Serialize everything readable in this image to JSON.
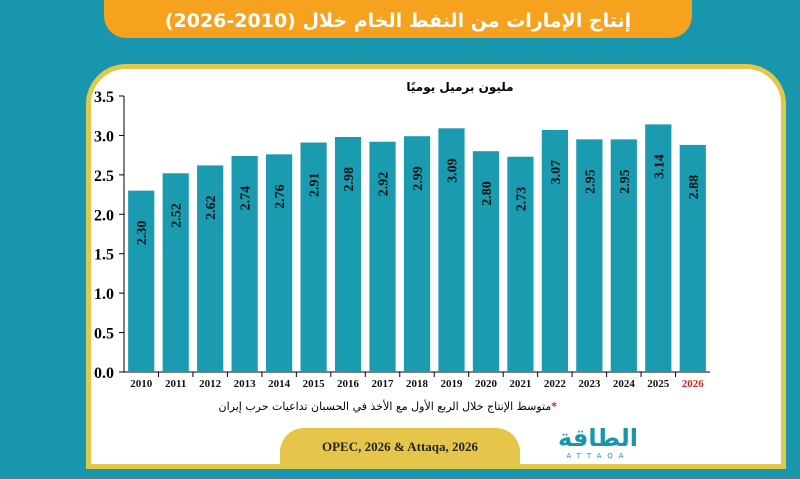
{
  "title": "إنتاج الإمارات من النفط الخام خلال (2010-2026)",
  "note_star": "*",
  "note": "متوسط الإنتاج خلال الربع الأول مع الأخذ في الحسبان تداعيات حرب إيران",
  "source": "OPEC, 2026 & Attaqa, 2026",
  "logo": {
    "ar": "الطاقة",
    "en": "ATTAQA"
  },
  "colors": {
    "bar": "#1a9bb0",
    "title_bg": "#f6a21e",
    "highlight_year": "#d22222"
  },
  "chart_data": {
    "type": "bar",
    "title": "إنتاج الإمارات من النفط الخام خلال (2010-2026)",
    "ylabel": "مليون برميل يوميًا",
    "xlabel": "",
    "categories": [
      "2010",
      "2011",
      "2012",
      "2013",
      "2014",
      "2015",
      "2016",
      "2017",
      "2018",
      "2019",
      "2020",
      "2021",
      "2022",
      "2023",
      "2024",
      "2025",
      "2026"
    ],
    "values": [
      2.3,
      2.52,
      2.62,
      2.74,
      2.76,
      2.91,
      2.98,
      2.92,
      2.99,
      3.09,
      2.8,
      2.73,
      3.07,
      2.95,
      2.95,
      3.14,
      2.88
    ],
    "data_labels": [
      "2.30",
      "2.52",
      "2.62",
      "2.74",
      "2.76",
      "2.91",
      "2.98",
      "2.92",
      "2.99",
      "3.09",
      "2.80",
      "2.73",
      "3.07",
      "2.95",
      "2.95",
      "3.14",
      "2.88"
    ],
    "yticks": [
      "0.0",
      "0.5",
      "1.0",
      "1.5",
      "2.0",
      "2.5",
      "3.0",
      "3.5"
    ],
    "ylim": [
      0,
      3.5
    ],
    "grid": false,
    "highlighted_category": "2026"
  }
}
